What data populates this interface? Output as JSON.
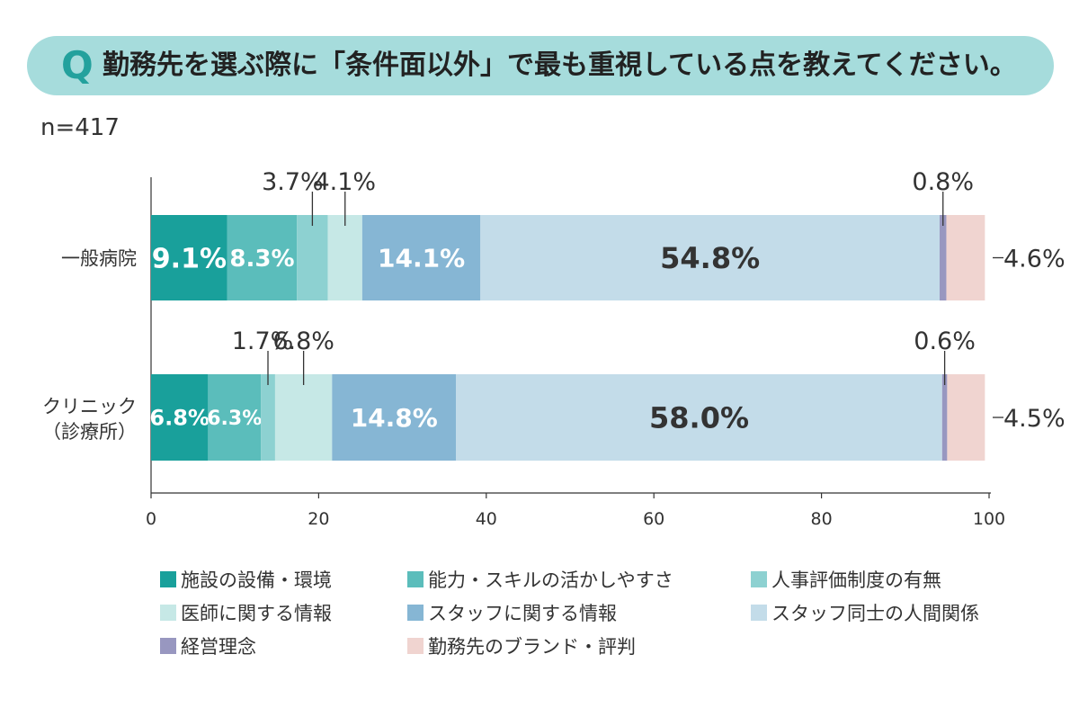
{
  "header": {
    "q_letter": "Q",
    "question": "勤務先を選ぶ際に「条件面以外」で最も重視している点を教えてください。",
    "n_label": "n=417"
  },
  "colors": {
    "banner": "#a6dcdc",
    "q_letter": "#23a19d"
  },
  "chart_data": {
    "type": "bar",
    "orientation": "horizontal",
    "stacked": true,
    "categories": [
      "一般病院",
      [
        "クリニック",
        "（診療所）"
      ]
    ],
    "xlim": [
      0,
      100
    ],
    "xticks": [
      0,
      20,
      40,
      60,
      80,
      100
    ],
    "grid": false,
    "legend_position": "bottom",
    "series": [
      {
        "name": "施設の設備・環境",
        "color": "#19a09b",
        "values": [
          9.1,
          6.8
        ],
        "labels": [
          "9.1%",
          "6.8%"
        ]
      },
      {
        "name": "能力・スキルの活かしやすさ",
        "color": "#5bbdbb",
        "values": [
          8.3,
          6.3
        ],
        "labels": [
          "8.3%",
          "6.3%"
        ]
      },
      {
        "name": "人事評価制度の有無",
        "color": "#8dd1d1",
        "values": [
          3.7,
          1.7
        ],
        "labels": [
          "3.7%",
          "1.7%"
        ]
      },
      {
        "name": "医師に関する情報",
        "color": "#c6e8e6",
        "values": [
          4.1,
          6.8
        ],
        "labels": [
          "4.1%",
          "6.8%"
        ]
      },
      {
        "name": "スタッフに関する情報",
        "color": "#86b6d4",
        "values": [
          14.1,
          14.8
        ],
        "labels": [
          "14.1%",
          "14.8%"
        ]
      },
      {
        "name": "スタッフ同士の人間関係",
        "color": "#c3dce9",
        "values": [
          54.8,
          58.0
        ],
        "labels": [
          "54.8%",
          "58.0%"
        ]
      },
      {
        "name": "経営理念",
        "color": "#9897c0",
        "values": [
          0.8,
          0.6
        ],
        "labels": [
          "0.8%",
          "0.6%"
        ]
      },
      {
        "name": "勤務先のブランド・評判",
        "color": "#f0d4d0",
        "values": [
          4.6,
          4.5
        ],
        "labels": [
          "4.6%",
          "4.5%"
        ]
      }
    ]
  }
}
